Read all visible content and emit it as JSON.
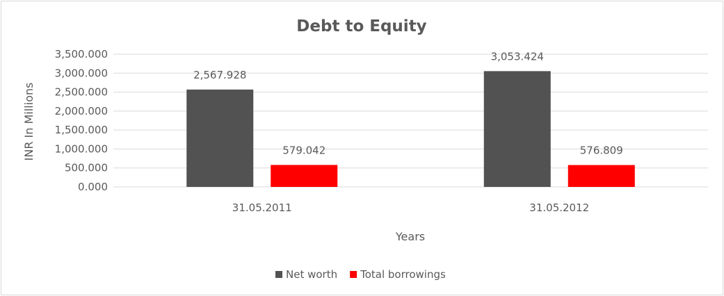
{
  "chart_data": {
    "type": "bar",
    "title": "Debt to Equity",
    "xlabel": "Years",
    "ylabel": "INR In Millions",
    "categories": [
      "31.05.2011",
      "31.05.2012"
    ],
    "series": [
      {
        "name": "Net worth",
        "color": "#525252",
        "values": [
          2567.928,
          3053.424
        ],
        "labels": [
          "2,567.928",
          "3,053.424"
        ]
      },
      {
        "name": "Total borrowings",
        "color": "#ff0000",
        "values": [
          579.042,
          576.809
        ],
        "labels": [
          "579.042",
          "576.809"
        ]
      }
    ],
    "ylim": [
      0,
      3500
    ],
    "yticks": [
      0,
      500,
      1000,
      1500,
      2000,
      2500,
      3000,
      3500
    ],
    "ytick_labels": [
      "0.000",
      "500.000",
      "1,000.000",
      "1,500.000",
      "2,000.000",
      "2,500.000",
      "3,000.000",
      "3,500.000"
    ],
    "grid": true,
    "gridline_color": "#d9d9d9",
    "legend_position": "bottom"
  }
}
